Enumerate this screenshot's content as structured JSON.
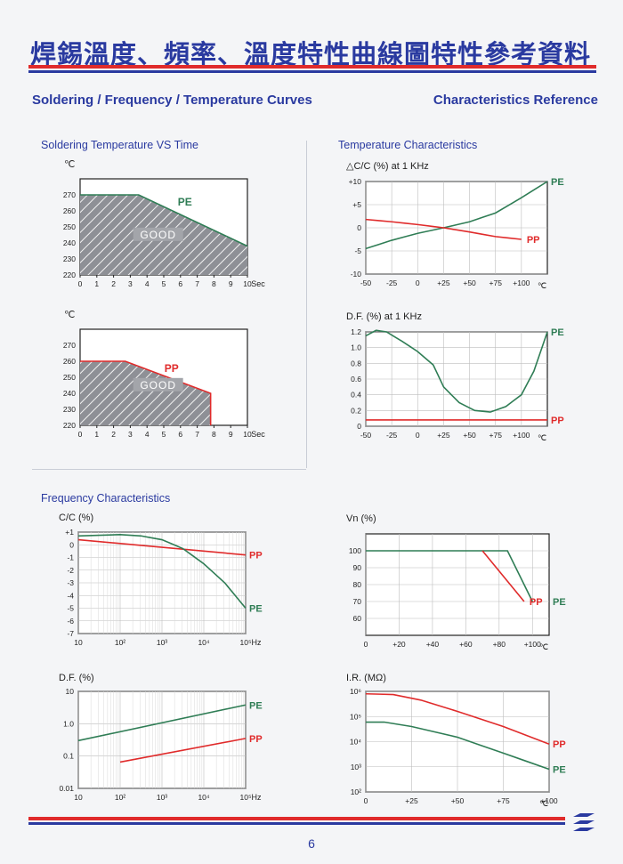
{
  "header": {
    "title_cn": "焊錫溫度、頻率、溫度特性曲線圖",
    "title_cn_right": "特性參考資料",
    "subtitle_left": "Soldering / Frequency / Temperature Curves",
    "subtitle_right": "Characteristics Reference"
  },
  "sections": {
    "soldering": "Soldering Temperature VS Time",
    "temperature": "Temperature Characteristics",
    "frequency": "Frequency Characteristics"
  },
  "page_number": "6",
  "colors": {
    "accent": "#2a3aa0",
    "red": "#e02b2b",
    "green": "#2f7d55"
  },
  "chart_data": [
    {
      "id": "solder_pe",
      "type": "area",
      "ylabel": "℃",
      "xlabel": "Sec",
      "xlim": [
        0,
        10
      ],
      "ylim": [
        220,
        280
      ],
      "xticks": [
        0,
        1,
        2,
        3,
        4,
        5,
        6,
        7,
        8,
        9,
        10
      ],
      "yticks": [
        220,
        230,
        240,
        250,
        260,
        270
      ],
      "series": [
        {
          "name": "PE",
          "x": [
            0,
            3.5,
            10
          ],
          "y": [
            270,
            270,
            238
          ]
        }
      ],
      "region_label": "GOOD"
    },
    {
      "id": "solder_pp",
      "type": "area",
      "ylabel": "℃",
      "xlabel": "Sec",
      "xlim": [
        0,
        10
      ],
      "ylim": [
        220,
        280
      ],
      "xticks": [
        0,
        1,
        2,
        3,
        4,
        5,
        6,
        7,
        8,
        9,
        10
      ],
      "yticks": [
        220,
        230,
        240,
        250,
        260,
        270
      ],
      "series": [
        {
          "name": "PP",
          "x": [
            0,
            2.7,
            7.8,
            7.8
          ],
          "y": [
            260,
            260,
            240,
            220
          ]
        }
      ],
      "region_label": "GOOD"
    },
    {
      "id": "temp_cap",
      "type": "line",
      "title": "△C/C (%) at  1 KHz",
      "xlabel": "℃",
      "xlim": [
        -50,
        125
      ],
      "ylim": [
        -10,
        10
      ],
      "xticks": [
        -50,
        -25,
        0,
        25,
        50,
        75,
        100
      ],
      "xtick_labels": [
        "-50",
        "-25",
        "0",
        "+25",
        "+50",
        "+75",
        "+100"
      ],
      "yticks": [
        -10,
        -5,
        0,
        5,
        10
      ],
      "ytick_labels": [
        "-10",
        "-5",
        "0",
        "+5",
        "+10"
      ],
      "series": [
        {
          "name": "PE",
          "x": [
            -50,
            -25,
            0,
            25,
            50,
            75,
            100,
            125
          ],
          "y": [
            -4.5,
            -2.7,
            -1.2,
            0,
            1.3,
            3.2,
            6.5,
            10
          ]
        },
        {
          "name": "PP",
          "x": [
            -50,
            -25,
            0,
            25,
            50,
            75,
            100
          ],
          "y": [
            1.8,
            1.3,
            0.7,
            0,
            -0.9,
            -1.9,
            -2.5
          ]
        }
      ]
    },
    {
      "id": "temp_df",
      "type": "line",
      "title": "D.F. (%) at  1 KHz",
      "xlabel": "℃",
      "xlim": [
        -50,
        125
      ],
      "ylim": [
        0,
        1.2
      ],
      "xticks": [
        -50,
        -25,
        0,
        25,
        50,
        75,
        100
      ],
      "xtick_labels": [
        "-50",
        "-25",
        "0",
        "+25",
        "+50",
        "+75",
        "+100"
      ],
      "yticks": [
        0,
        0.2,
        0.4,
        0.6,
        0.8,
        1.0,
        1.2
      ],
      "ytick_labels": [
        "0",
        "0.2",
        "0.4",
        "0.6",
        "0.8",
        "1.0",
        "1.2"
      ],
      "series": [
        {
          "name": "PE",
          "x": [
            -50,
            -40,
            -30,
            -15,
            0,
            15,
            25,
            40,
            55,
            70,
            85,
            100,
            112,
            125
          ],
          "y": [
            1.15,
            1.22,
            1.2,
            1.08,
            0.95,
            0.78,
            0.5,
            0.3,
            0.2,
            0.18,
            0.25,
            0.4,
            0.7,
            1.2
          ]
        },
        {
          "name": "PP",
          "x": [
            -50,
            125
          ],
          "y": [
            0.08,
            0.08
          ]
        }
      ]
    },
    {
      "id": "freq_cap",
      "type": "line",
      "title": "C/C (%)",
      "xlabel": "Hz",
      "xscale": "log",
      "xlim": [
        10,
        100000
      ],
      "ylim": [
        -7,
        1
      ],
      "xticks": [
        10,
        100,
        1000,
        10000,
        100000
      ],
      "xtick_labels": [
        "10",
        "10²",
        "10³",
        "10⁴",
        "10⁵"
      ],
      "yticks": [
        -7,
        -6,
        -5,
        -4,
        -3,
        -2,
        -1,
        0,
        1
      ],
      "ytick_labels": [
        "-7",
        "-6",
        "-5",
        "-4",
        "-3",
        "-2",
        "-1",
        "0",
        "+1"
      ],
      "series": [
        {
          "name": "PP",
          "x": [
            10,
            100000
          ],
          "y": [
            0.4,
            -0.8
          ]
        },
        {
          "name": "PE",
          "x": [
            10,
            100,
            316,
            1000,
            3162,
            10000,
            31623,
            100000
          ],
          "y": [
            0.7,
            0.8,
            0.7,
            0.4,
            -0.3,
            -1.5,
            -3,
            -5
          ]
        }
      ]
    },
    {
      "id": "freq_df",
      "type": "line",
      "title": "D.F. (%)",
      "xlabel": "Hz",
      "xscale": "log",
      "yscale": "log",
      "xlim": [
        10,
        100000
      ],
      "ylim": [
        0.01,
        10
      ],
      "xticks": [
        10,
        100,
        1000,
        10000,
        100000
      ],
      "xtick_labels": [
        "10",
        "10²",
        "10³",
        "10⁴",
        "10⁵"
      ],
      "yticks": [
        0.01,
        0.1,
        1,
        10
      ],
      "ytick_labels": [
        "0.01",
        "0.1",
        "1.0",
        "10"
      ],
      "series": [
        {
          "name": "PE",
          "x": [
            10,
            100000
          ],
          "y": [
            0.3,
            3.8
          ]
        },
        {
          "name": "PP",
          "x": [
            100,
            100000
          ],
          "y": [
            0.065,
            0.35
          ]
        }
      ]
    },
    {
      "id": "temp_vn",
      "type": "line",
      "title": "Vn (%)",
      "xlabel": "℃",
      "xlim": [
        0,
        110
      ],
      "ylim": [
        50,
        110
      ],
      "xticks": [
        0,
        20,
        40,
        60,
        80,
        100
      ],
      "xtick_labels": [
        "0",
        "+20",
        "+40",
        "+60",
        "+80",
        "+100"
      ],
      "yticks": [
        60,
        70,
        80,
        90,
        100
      ],
      "ytick_labels": [
        "60",
        "70",
        "80",
        "90",
        "100"
      ],
      "series": [
        {
          "name": "PE",
          "x": [
            0,
            85,
            100
          ],
          "y": [
            100,
            100,
            70
          ]
        },
        {
          "name": "PP",
          "x": [
            70,
            95
          ],
          "y": [
            100,
            70
          ]
        }
      ]
    },
    {
      "id": "temp_ir",
      "type": "line",
      "title": "I.R. (MΩ)",
      "xlabel": "℃",
      "yscale": "log",
      "xlim": [
        0,
        100
      ],
      "ylim": [
        100,
        1000000
      ],
      "xticks": [
        0,
        25,
        50,
        75,
        100
      ],
      "xtick_labels": [
        "0",
        "+25",
        "+50",
        "+75",
        "+100"
      ],
      "yticks": [
        100,
        1000,
        10000,
        100000,
        1000000
      ],
      "ytick_labels": [
        "10²",
        "10³",
        "10⁴",
        "10⁵",
        "10⁶"
      ],
      "series": [
        {
          "name": "PP",
          "x": [
            0,
            15,
            30,
            50,
            75,
            100
          ],
          "y": [
            800000,
            750000,
            450000,
            160000,
            40000,
            8000
          ]
        },
        {
          "name": "PE",
          "x": [
            0,
            10,
            25,
            50,
            75,
            100
          ],
          "y": [
            60000,
            60000,
            40000,
            15000,
            3500,
            800
          ]
        }
      ]
    }
  ]
}
